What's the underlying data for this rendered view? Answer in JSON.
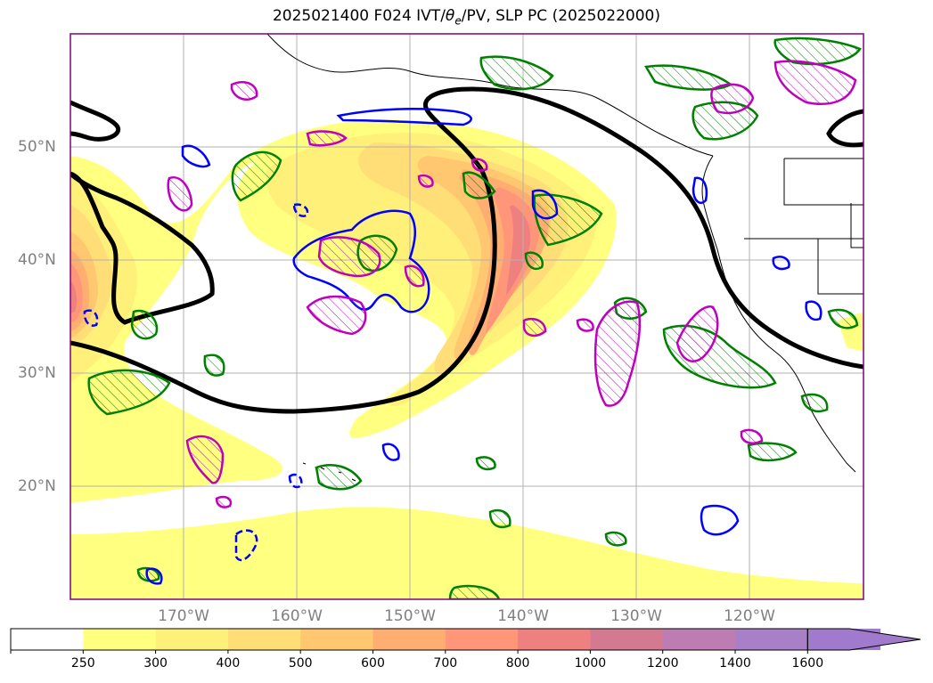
{
  "title": "2025021400 F024 IVT/θe/PV, SLP PC (2025022000)",
  "title_parts": {
    "prefix": "2025021400 F024 IVT/",
    "theta": "θ",
    "theta_sub": "e",
    "suffix": "/PV, SLP PC (2025022000)"
  },
  "map": {
    "lon_range": [
      -180,
      -110
    ],
    "lat_range": [
      10,
      60
    ],
    "lat_labels": [
      "20°N",
      "30°N",
      "40°N",
      "50°N"
    ],
    "lon_labels": [
      "170°W",
      "160°W",
      "150°W",
      "140°W",
      "130°W",
      "120°W"
    ],
    "gridlines": true,
    "coastline_color": "#000000",
    "colors": {
      "slp_contour": "#000000",
      "green_contour": "#008000",
      "blue_contour": "#0000ff",
      "magenta_contour": "#bf00bf",
      "frame": "#800080"
    }
  },
  "colorbar": {
    "ticks": [
      "250",
      "300",
      "400",
      "500",
      "600",
      "700",
      "800",
      "1000",
      "1200",
      "1400",
      "1600"
    ],
    "colors": [
      "#ffffff",
      "#ffff80",
      "#fff07a",
      "#ffde78",
      "#ffc870",
      "#ffae72",
      "#ff967a",
      "#ef8080",
      "#d47a90",
      "#bd7cb2",
      "#a880c8",
      "#a07acc"
    ],
    "extend": "max"
  },
  "ivt_field": {
    "units_shown": "IVT",
    "max_category": "1000"
  }
}
